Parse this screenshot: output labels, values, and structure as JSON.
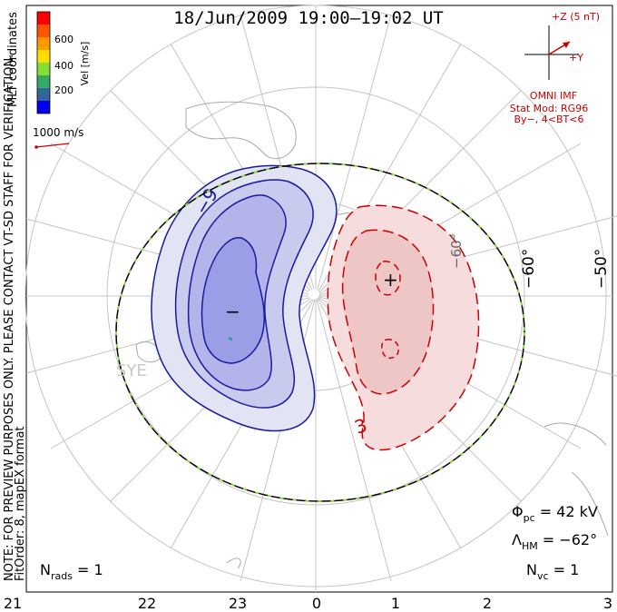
{
  "title": "18/Jun/2009 19:00–19:02 UT",
  "coords_label": "MLT coordinates",
  "vel_label": "Vel [m/s]",
  "colorbar": {
    "ticks": [
      "600",
      "400",
      "200"
    ],
    "colors": [
      "#ff0000",
      "#ff6600",
      "#ffaa00",
      "#ffff00",
      "#88ee44",
      "#33aa66",
      "#3366aa",
      "#0000ff"
    ]
  },
  "vector_scale_label": "1000 m/s",
  "note_line1": "NOTE: FOR PREVIEW PURPOSES ONLY. PLEASE CONTACT VT-SD STAFF FOR VERIFICATION.",
  "note_line2": "FitOrder: 8, mapEX format",
  "imf": {
    "z_label": "+Z (5 nT)",
    "y_label": "+Y",
    "omni": "OMNI IMF",
    "model": "Stat Mod: RG96",
    "model_params": "By−, 4<BT<6",
    "color": "#cc0000"
  },
  "mlt_labels": [
    "21",
    "22",
    "23",
    "0",
    "1",
    "2",
    "3"
  ],
  "lat_labels": [
    "−60°",
    "−50°"
  ],
  "lat_label_inner": "−60°",
  "station_label": "SYE",
  "contour_labels": {
    "neg": "−9",
    "pos": "3"
  },
  "extrema": {
    "min_symbol": "−",
    "max_symbol": "+"
  },
  "phi_pc": {
    "symbol": "Φ",
    "sub": "pc",
    "value": " = 42 kV"
  },
  "lambda_hm": {
    "symbol": "Λ",
    "sub": "HM",
    "value": " = −62°"
  },
  "n_rads": {
    "symbol": "N",
    "sub": "rads",
    "value": " = 1"
  },
  "n_vc": {
    "symbol": "N",
    "sub": "vc",
    "value": " = 1"
  },
  "colors": {
    "neg_fill_outer": "#e3e4f3",
    "neg_fill_mid": "#c9cbee",
    "neg_fill_inner": "#b3b5ea",
    "neg_fill_core": "#9a9ee6",
    "neg_line": "#1a1aa0",
    "pos_fill_outer": "#f6dcdc",
    "pos_fill_inner": "#efc6c6",
    "pos_line": "#cc0000",
    "hmb_dash": "#88dd44"
  }
}
